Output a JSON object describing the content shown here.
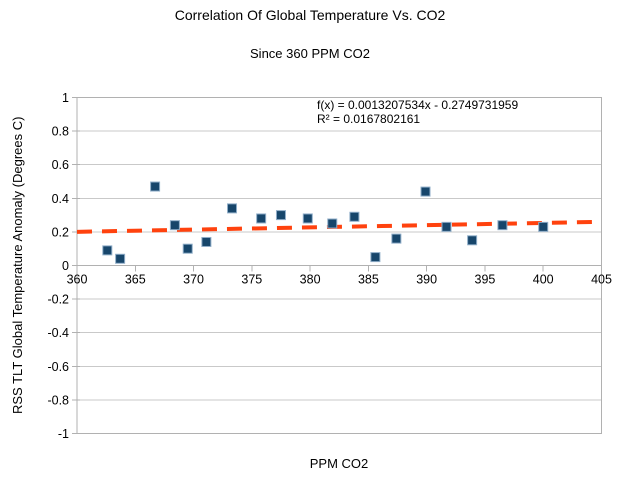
{
  "chart_data": {
    "type": "scatter",
    "title": "Correlation Of Global Temperature Vs. CO2",
    "subtitle": "Since 360 PPM CO2",
    "xlabel": "PPM CO2",
    "ylabel": "RSS TLT Global Temperature Anomaly (Degrees C)",
    "xlim": [
      360,
      405
    ],
    "ylim": [
      -1,
      1
    ],
    "x_ticks": [
      360,
      365,
      370,
      375,
      380,
      385,
      390,
      395,
      400,
      405
    ],
    "y_ticks": [
      1,
      0.8,
      0.6,
      0.4,
      0.2,
      0,
      -0.2,
      -0.4,
      -0.6,
      -0.8,
      -1
    ],
    "grid": "horizontal-only",
    "legend": "none",
    "points": [
      [
        362.6,
        0.09
      ],
      [
        363.7,
        0.04
      ],
      [
        366.7,
        0.47
      ],
      [
        368.4,
        0.24
      ],
      [
        369.5,
        0.1
      ],
      [
        371.1,
        0.14
      ],
      [
        373.3,
        0.34
      ],
      [
        375.8,
        0.28
      ],
      [
        377.5,
        0.3
      ],
      [
        379.8,
        0.28
      ],
      [
        381.9,
        0.25
      ],
      [
        383.8,
        0.29
      ],
      [
        385.6,
        0.05
      ],
      [
        387.4,
        0.16
      ],
      [
        389.9,
        0.44
      ],
      [
        391.7,
        0.23
      ],
      [
        393.9,
        0.15
      ],
      [
        396.5,
        0.24
      ],
      [
        400.0,
        0.23
      ]
    ],
    "trendline": {
      "type": "linear-dashed",
      "slope": 0.0013207534,
      "intercept": -0.2749731959,
      "r_squared": 0.0167802161,
      "equation_label": "f(x) = 0.0013207534x - 0.2749731959",
      "r_squared_label": "R² = 0.0167802161"
    },
    "colors": {
      "point": "#17466b",
      "point_edge": "#8fadc8",
      "trend": "#ff420e",
      "grid": "#c9c9c9",
      "border": "#b1b1b1",
      "text": "#000000"
    }
  }
}
